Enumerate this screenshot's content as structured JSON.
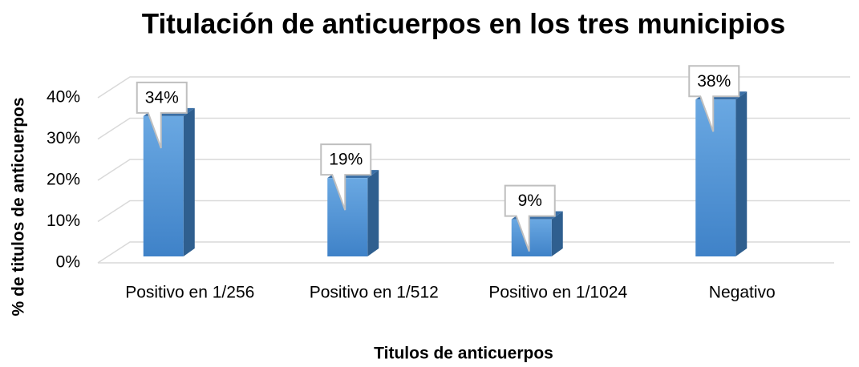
{
  "chart_data": {
    "type": "bar3d",
    "title": "Titulación de anticuerpos en los tres municipios",
    "x_label": "Titulos de anticuerpos",
    "y_label": "% de titulos de anticuerpos",
    "categories": [
      "Positivo en 1/256",
      "Positivo en 1/512",
      "Positivo en 1/1024",
      "Negativo"
    ],
    "values": [
      34,
      19,
      9,
      38
    ],
    "value_labels": [
      "34%",
      "19%",
      "9%",
      "38%"
    ],
    "color": "#5b9bd5",
    "ylim": [
      0,
      40
    ],
    "yticks": [
      {
        "value": 0,
        "label": "0%"
      },
      {
        "value": 10,
        "label": "10%"
      },
      {
        "value": 20,
        "label": "20%"
      },
      {
        "value": 30,
        "label": "30%"
      },
      {
        "value": 40,
        "label": "40%"
      }
    ],
    "grid": true
  }
}
